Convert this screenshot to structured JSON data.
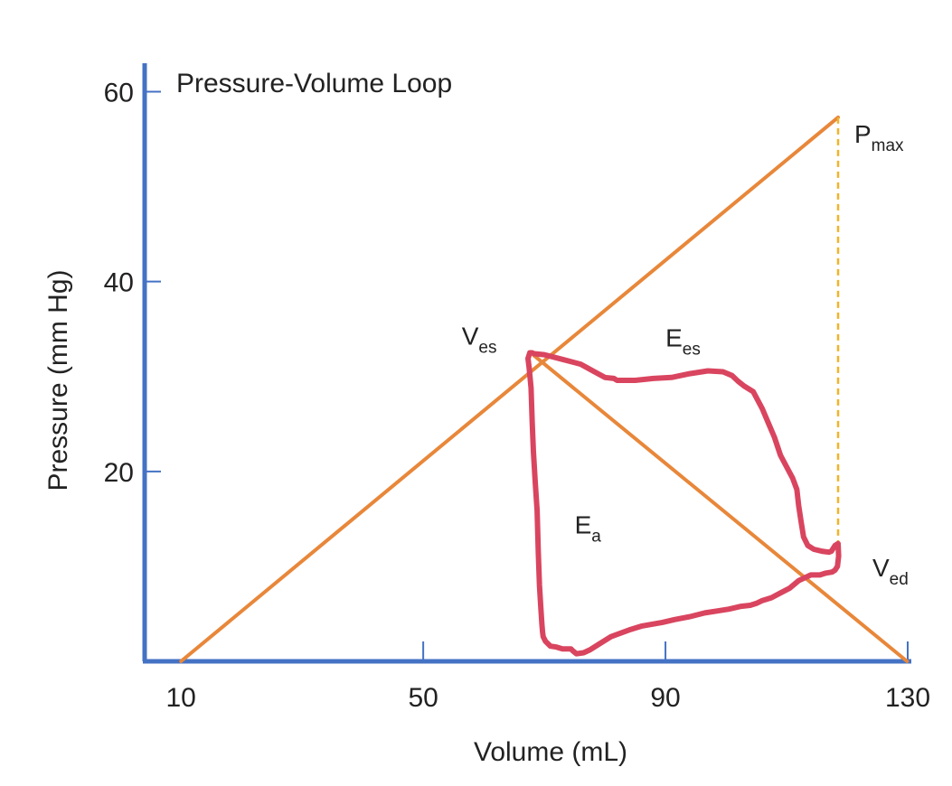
{
  "chart_data": {
    "type": "line",
    "title": "Pressure-Volume Loop",
    "xlabel": "Volume (mL)",
    "ylabel": "Pressure (mm Hg)",
    "xlim": [
      4,
      130
    ],
    "ylim": [
      0,
      63
    ],
    "x_ticks": [
      10,
      50,
      90,
      130
    ],
    "y_ticks": [
      20,
      40,
      60
    ],
    "grid": false,
    "colors": {
      "axis": "#4472c4",
      "lines": "#e8873a",
      "loop": "#d9455f",
      "dashed": "#f0b429",
      "text": "#222222"
    },
    "series": [
      {
        "kind": "esp-line",
        "x": [
          10,
          118.5
        ],
        "y": [
          0,
          57.3
        ]
      },
      {
        "kind": "ea-line",
        "x": [
          68.3,
          129.9
        ],
        "y": [
          32.2,
          0
        ]
      },
      {
        "kind": "vertical-dashed",
        "x": [
          118.5,
          118.5
        ],
        "y": [
          57.3,
          11.6
        ]
      },
      {
        "kind": "pv-loop",
        "x": [
          68.3,
          70,
          73,
          76,
          78,
          80,
          81.5,
          82,
          85,
          88,
          91,
          94,
          97,
          99.5,
          101,
          102,
          103,
          104.5,
          106,
          107,
          108,
          109,
          110,
          111,
          111.7,
          112,
          112.4,
          112.8,
          113.5,
          114.5,
          115.8,
          117,
          117.4,
          118,
          118.5,
          118.6,
          118.4,
          118,
          117.5,
          116.5,
          115.5,
          114,
          112,
          110.5,
          109,
          107.5,
          106,
          105,
          104,
          102.5,
          100.5,
          98.5,
          96.5,
          94,
          91.5,
          89.5,
          86,
          84,
          81,
          79,
          77.5,
          76.5,
          75.3,
          74.7,
          74.4,
          73.8,
          73,
          72,
          71,
          70.2,
          69.8,
          69.7,
          69.6,
          69.4,
          69.2,
          69,
          68.8,
          68.5,
          68.2,
          68,
          67.8,
          67.5,
          67.3,
          67.6,
          68,
          68.3
        ],
        "y": [
          32.4,
          32.3,
          31.8,
          31.3,
          30.6,
          29.9,
          29.8,
          29.6,
          29.6,
          29.8,
          29.9,
          30.3,
          30.6,
          30.5,
          30.1,
          29.5,
          29,
          28.4,
          26.6,
          25.1,
          23.6,
          21.7,
          20.5,
          19.3,
          18.1,
          16.4,
          14.7,
          13.1,
          12.2,
          11.8,
          11.6,
          11.5,
          11.6,
          12.2,
          12.4,
          11.1,
          10,
          9.6,
          9.4,
          9.3,
          9.1,
          9.1,
          8.5,
          7.7,
          7.2,
          6.7,
          6.4,
          6.1,
          5.9,
          5.8,
          5.5,
          5.3,
          5.1,
          4.7,
          4.4,
          4.1,
          3.7,
          3.3,
          2.6,
          1.8,
          1.2,
          0.9,
          0.8,
          1.1,
          1.3,
          1.3,
          1.3,
          1.5,
          1.6,
          2.1,
          2.6,
          3.1,
          3.9,
          5.8,
          8,
          11.5,
          15.9,
          18.9,
          22.1,
          25.1,
          28.8,
          30.9,
          31.9,
          32.5,
          32.5,
          32.4
        ]
      }
    ],
    "annotations": {
      "pmax": {
        "main": "P",
        "sub": "max",
        "x": 118.5,
        "y": 57.3
      },
      "ves": {
        "main": "V",
        "sub": "es",
        "x": 68.3,
        "y": 32.2
      },
      "ees": {
        "main": "E",
        "sub": "es",
        "x": 90,
        "y": 34.3
      },
      "ea": {
        "main": "E",
        "sub": "a",
        "x": 75,
        "y": 14.4
      },
      "ved": {
        "main": "V",
        "sub": "ed",
        "x": 118.5,
        "y": 10.3
      }
    }
  }
}
